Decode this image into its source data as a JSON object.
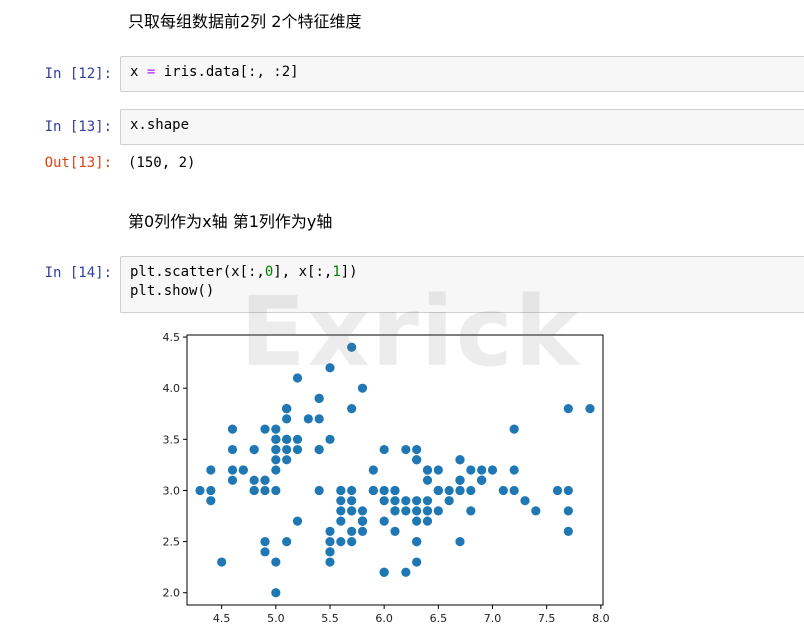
{
  "cells": {
    "md1": "只取每组数据前2列 2个特征维度",
    "in12_prompt": "In  [12]:",
    "in12_code": {
      "a": "x ",
      "op": "=",
      "b": " iris.data[:, :2]"
    },
    "in13_prompt": "In  [13]:",
    "in13_code": "x.shape",
    "out13_prompt": "Out[13]:",
    "out13_value": "(150, 2)",
    "md2": "第0列作为x轴 第1列作为y轴",
    "in14_prompt": "In  [14]:",
    "in14_line1": {
      "a": "plt.scatter(x[:,",
      "n1": "0",
      "b": "], x[:,",
      "n2": "1",
      "c": "])"
    },
    "in14_line2": "plt.show()"
  },
  "watermark": "Exrick",
  "chart_data": {
    "type": "scatter",
    "title": "",
    "xlabel": "",
    "ylabel": "",
    "xlim": [
      4.18,
      8.02
    ],
    "ylim": [
      1.88,
      4.52
    ],
    "xticks": [
      "4.5",
      "5.0",
      "5.5",
      "6.0",
      "6.5",
      "7.0",
      "7.5",
      "8.0"
    ],
    "yticks": [
      "2.0",
      "2.5",
      "3.0",
      "3.5",
      "4.0",
      "4.5"
    ],
    "grid": false,
    "marker_color": "#1f77b4",
    "x": [
      5.1,
      4.9,
      4.7,
      4.6,
      5.0,
      5.4,
      4.6,
      5.0,
      4.4,
      4.9,
      5.4,
      4.8,
      4.8,
      4.3,
      5.8,
      5.7,
      5.4,
      5.1,
      5.7,
      5.1,
      5.4,
      5.1,
      4.6,
      5.1,
      4.8,
      5.0,
      5.0,
      5.2,
      5.2,
      4.7,
      4.8,
      5.4,
      5.2,
      5.5,
      4.9,
      5.0,
      5.5,
      4.9,
      4.4,
      5.1,
      5.0,
      4.5,
      4.4,
      5.0,
      5.1,
      4.8,
      5.1,
      4.6,
      5.3,
      5.0,
      7.0,
      6.4,
      6.9,
      5.5,
      6.5,
      5.7,
      6.3,
      4.9,
      6.6,
      5.2,
      5.0,
      5.9,
      6.0,
      6.1,
      5.6,
      6.7,
      5.6,
      5.8,
      6.2,
      5.6,
      5.9,
      6.1,
      6.3,
      6.1,
      6.4,
      6.6,
      6.8,
      6.7,
      6.0,
      5.7,
      5.5,
      5.5,
      5.8,
      6.0,
      5.4,
      6.0,
      6.7,
      6.3,
      5.6,
      5.5,
      5.5,
      6.1,
      5.8,
      5.0,
      5.6,
      5.7,
      5.7,
      6.2,
      5.1,
      5.7,
      6.3,
      5.8,
      7.1,
      6.3,
      6.5,
      7.6,
      4.9,
      7.3,
      6.7,
      7.2,
      6.5,
      6.4,
      6.8,
      5.7,
      5.8,
      6.4,
      6.5,
      7.7,
      7.7,
      6.0,
      6.9,
      5.6,
      7.7,
      6.3,
      6.7,
      7.2,
      6.2,
      6.1,
      6.4,
      7.2,
      7.4,
      7.9,
      6.4,
      6.3,
      6.1,
      7.7,
      6.3,
      6.4,
      6.0,
      6.9,
      6.7,
      6.9,
      5.8,
      6.8,
      6.7,
      6.7,
      6.3,
      6.5,
      6.2,
      5.9
    ],
    "y": [
      3.5,
      3.0,
      3.2,
      3.1,
      3.6,
      3.9,
      3.4,
      3.4,
      2.9,
      3.1,
      3.7,
      3.4,
      3.0,
      3.0,
      4.0,
      4.4,
      3.9,
      3.5,
      3.8,
      3.8,
      3.4,
      3.7,
      3.6,
      3.3,
      3.4,
      3.0,
      3.4,
      3.5,
      3.4,
      3.2,
      3.1,
      3.4,
      4.1,
      4.2,
      3.1,
      3.2,
      3.5,
      3.6,
      3.0,
      3.4,
      3.5,
      2.3,
      3.2,
      3.5,
      3.8,
      3.0,
      3.8,
      3.2,
      3.7,
      3.3,
      3.2,
      3.2,
      3.1,
      2.3,
      2.8,
      2.8,
      3.3,
      2.4,
      2.9,
      2.7,
      2.0,
      3.0,
      2.2,
      2.9,
      2.9,
      3.1,
      3.0,
      2.7,
      2.2,
      2.5,
      3.2,
      2.8,
      2.5,
      2.8,
      2.9,
      3.0,
      2.8,
      3.0,
      2.9,
      2.6,
      2.4,
      2.4,
      2.7,
      2.7,
      3.0,
      3.4,
      3.1,
      2.3,
      3.0,
      2.5,
      2.6,
      3.0,
      2.6,
      2.3,
      2.7,
      3.0,
      2.9,
      2.9,
      2.5,
      2.8,
      3.3,
      2.7,
      3.0,
      2.9,
      3.0,
      3.0,
      2.5,
      2.9,
      2.5,
      3.6,
      3.2,
      2.7,
      3.0,
      2.5,
      2.8,
      3.2,
      3.0,
      3.8,
      2.6,
      2.2,
      3.2,
      2.8,
      2.8,
      2.7,
      3.3,
      3.2,
      2.8,
      3.0,
      2.8,
      3.0,
      2.8,
      3.8,
      2.8,
      2.8,
      2.6,
      3.0,
      3.4,
      3.1,
      3.0,
      3.1,
      3.1,
      3.1,
      2.7,
      3.2,
      3.3,
      3.0,
      2.5,
      3.0,
      3.4,
      3.0
    ]
  }
}
